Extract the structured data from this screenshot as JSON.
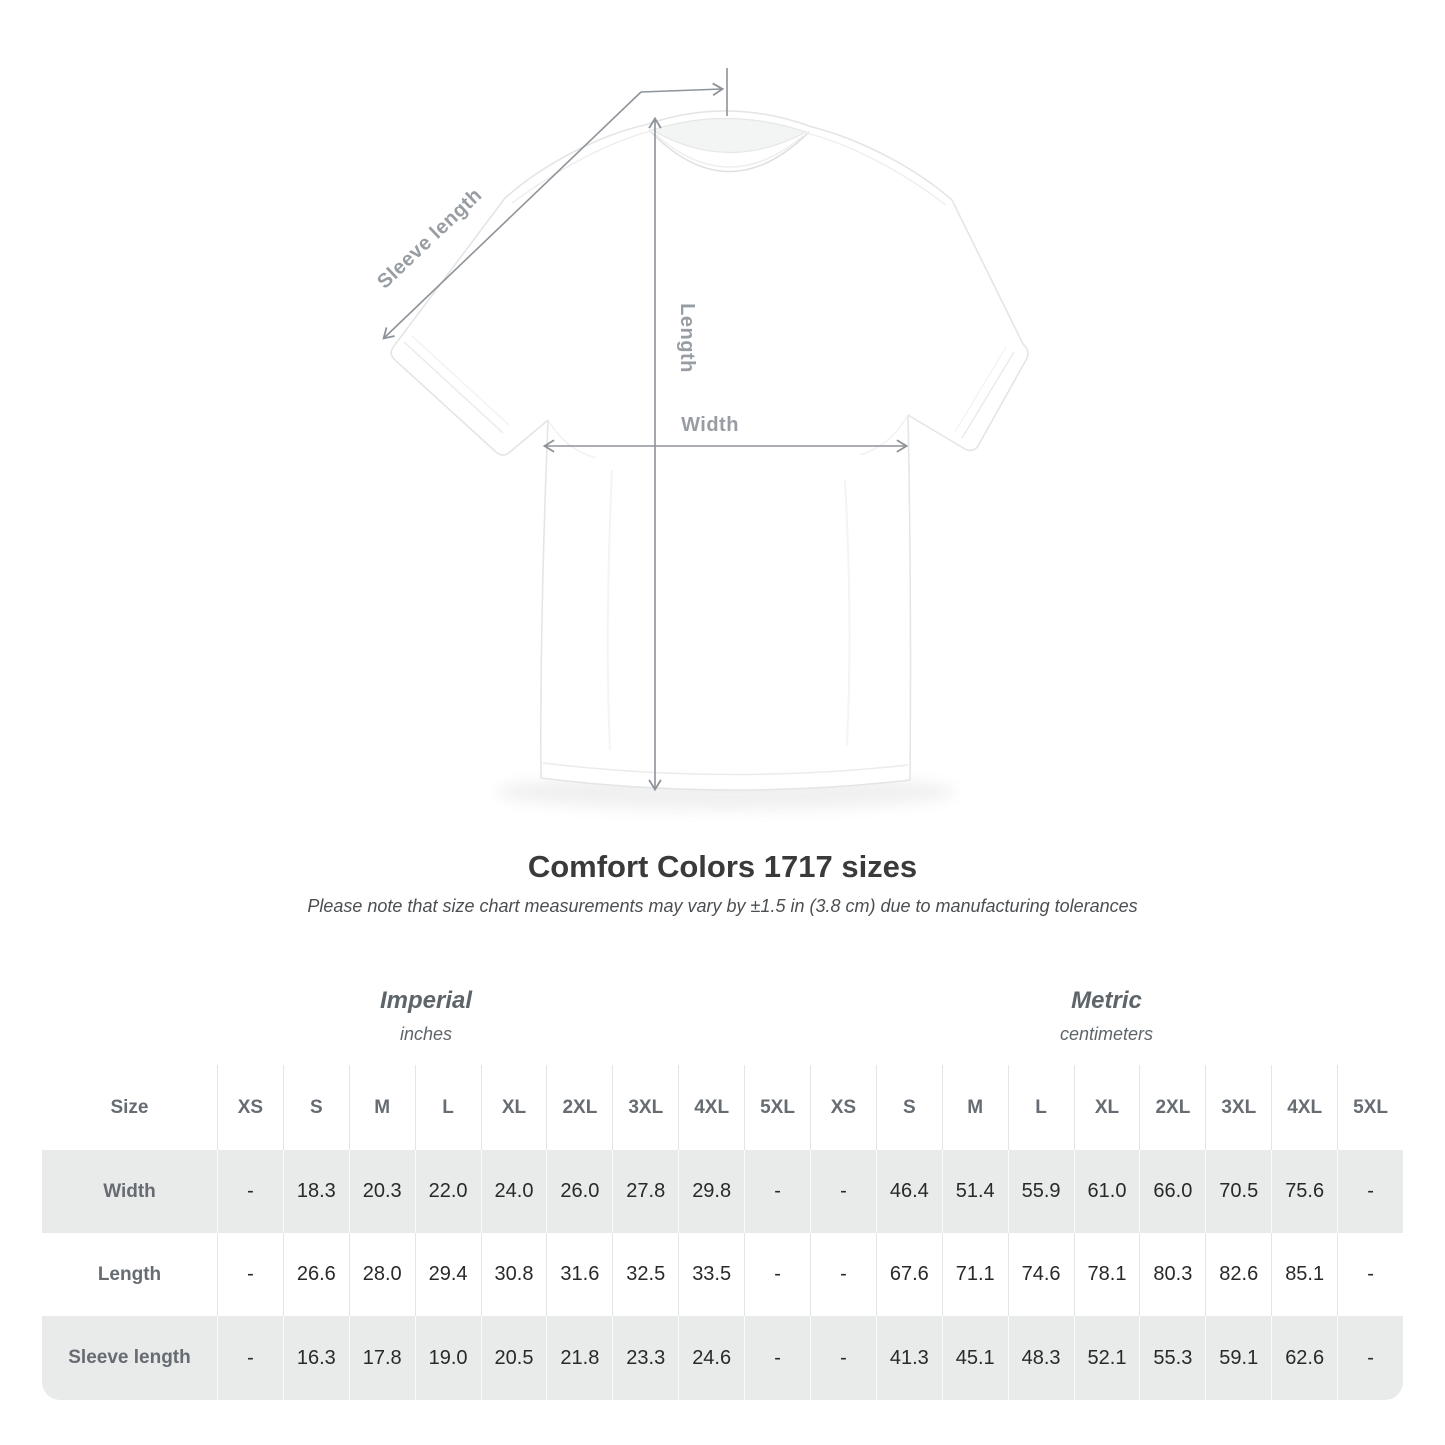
{
  "diagram": {
    "labels": {
      "sleeve_length": "Sleeve length",
      "length": "Length",
      "width": "Width"
    }
  },
  "heading": {
    "title": "Comfort Colors 1717 sizes",
    "subtitle": "Please note that size chart measurements may vary by ±1.5 in (3.8 cm) due to manufacturing tolerances"
  },
  "table": {
    "size_col_header": "Size",
    "sizes": [
      "XS",
      "S",
      "M",
      "L",
      "XL",
      "2XL",
      "3XL",
      "4XL",
      "5XL"
    ],
    "groups": [
      {
        "label": "Imperial",
        "unit": "inches"
      },
      {
        "label": "Metric",
        "unit": "centimeters"
      }
    ],
    "rows": [
      {
        "label": "Width",
        "imperial": [
          "-",
          "18.3",
          "20.3",
          "22.0",
          "24.0",
          "26.0",
          "27.8",
          "29.8",
          "-"
        ],
        "metric": [
          "-",
          "46.4",
          "51.4",
          "55.9",
          "61.0",
          "66.0",
          "70.5",
          "75.6",
          "-"
        ]
      },
      {
        "label": "Length",
        "imperial": [
          "-",
          "26.6",
          "28.0",
          "29.4",
          "30.8",
          "31.6",
          "32.5",
          "33.5",
          "-"
        ],
        "metric": [
          "-",
          "67.6",
          "71.1",
          "74.6",
          "78.1",
          "80.3",
          "82.6",
          "85.1",
          "-"
        ]
      },
      {
        "label": "Sleeve length",
        "imperial": [
          "-",
          "16.3",
          "17.8",
          "19.0",
          "20.5",
          "21.8",
          "23.3",
          "24.6",
          "-"
        ],
        "metric": [
          "-",
          "41.3",
          "45.1",
          "48.3",
          "52.1",
          "55.3",
          "59.1",
          "62.6",
          "-"
        ]
      }
    ]
  },
  "colors": {
    "row_shade": "#e9eaea",
    "header_text": "#666c72",
    "value_text": "#27292b",
    "title_text": "#3a3a3a",
    "annotation": "#8d9399"
  }
}
